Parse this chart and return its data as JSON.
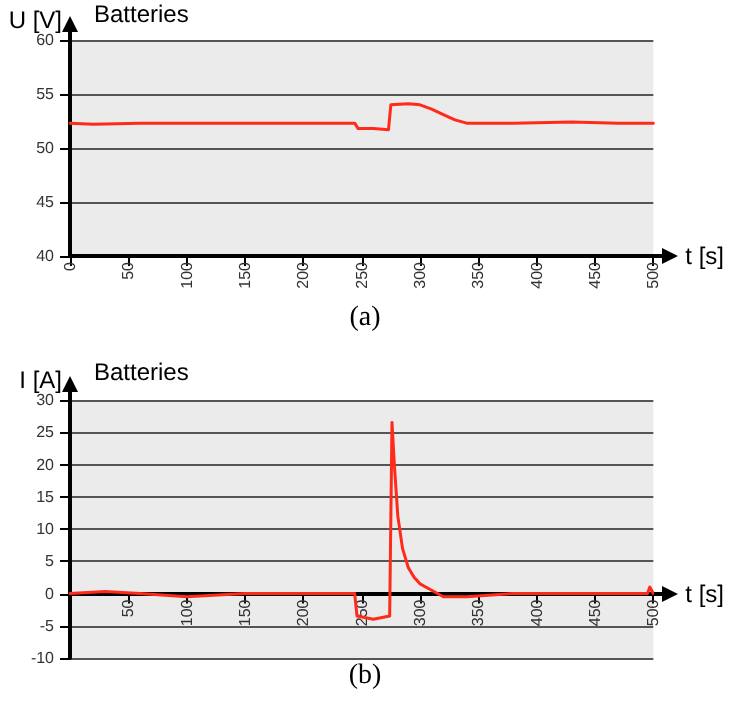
{
  "chart_data": [
    {
      "type": "line",
      "title": "Batteries",
      "ylabel": "U [V]",
      "xlabel": "t [s]",
      "annotations": [
        "(a)"
      ],
      "x": [
        0,
        20,
        60,
        100,
        150,
        200,
        244,
        247,
        260,
        273,
        275,
        290,
        300,
        310,
        320,
        330,
        340,
        380,
        430,
        470,
        500
      ],
      "series": [
        {
          "color": "#ff2a1a",
          "values": [
            52.3,
            52.2,
            52.3,
            52.3,
            52.3,
            52.3,
            52.3,
            51.8,
            51.8,
            51.7,
            54.0,
            54.1,
            54.0,
            53.6,
            53.1,
            52.6,
            52.3,
            52.3,
            52.4,
            52.3,
            52.3
          ]
        }
      ],
      "xlim": [
        0,
        500
      ],
      "xticks": [
        0,
        50,
        100,
        150,
        200,
        250,
        300,
        350,
        400,
        450,
        500
      ],
      "ylim": [
        40,
        60
      ],
      "yticks": [
        40,
        45,
        50,
        55,
        60
      ],
      "grid": "y",
      "marker": "none",
      "line_style": "solid"
    },
    {
      "type": "line",
      "title": "Batteries",
      "ylabel": "I [A]",
      "xlabel": "t [s]",
      "annotations": [
        "(b)"
      ],
      "x": [
        0,
        30,
        60,
        100,
        150,
        200,
        244,
        246,
        260,
        274,
        276,
        278,
        281,
        285,
        290,
        295,
        300,
        310,
        320,
        340,
        380,
        430,
        470,
        495,
        497,
        500
      ],
      "series": [
        {
          "color": "#ff2a1a",
          "values": [
            0,
            0.3,
            0,
            -0.5,
            0,
            0,
            0,
            -3.5,
            -4,
            -3.5,
            26.5,
            20,
            12,
            7,
            4,
            2.5,
            1.5,
            0.5,
            -0.5,
            -0.5,
            0,
            0,
            0,
            0,
            1,
            0
          ]
        }
      ],
      "xlim": [
        0,
        500
      ],
      "xticks": [
        50,
        100,
        150,
        200,
        250,
        300,
        350,
        400,
        450,
        500
      ],
      "ylim": [
        -10,
        30
      ],
      "yticks": [
        -10,
        -5,
        0,
        5,
        10,
        15,
        20,
        25,
        30
      ],
      "grid": "y",
      "marker": "none",
      "line_style": "solid"
    }
  ]
}
